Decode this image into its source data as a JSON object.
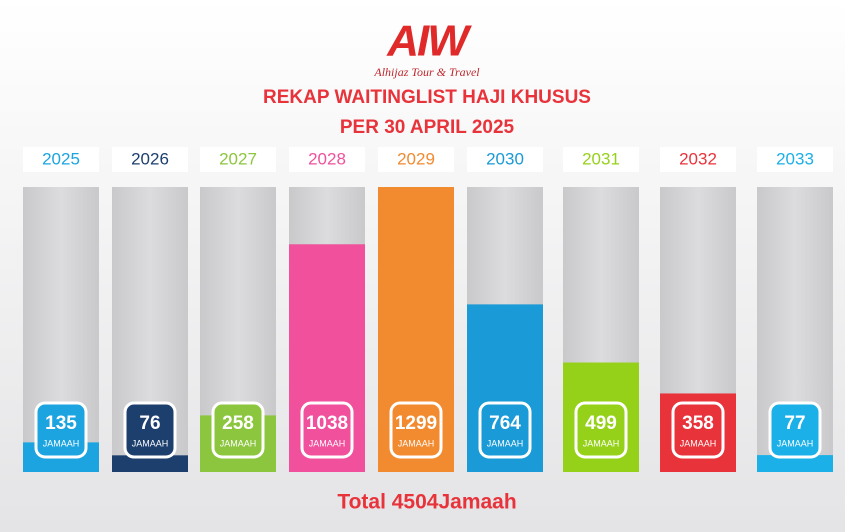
{
  "chart_data": {
    "type": "bar",
    "brand": "AIW",
    "tagline": "Alhijaz Tour & Travel",
    "title": "REKAP WAITINGLIST HAJI KHUSUS",
    "subtitle": "PER 30 APRIL 2025",
    "categories": [
      "2025",
      "2026",
      "2027",
      "2028",
      "2029",
      "2030",
      "2031",
      "2032",
      "2033"
    ],
    "values": [
      135,
      76,
      258,
      1038,
      1299,
      764,
      499,
      358,
      77
    ],
    "colors": [
      "#1ba4e0",
      "#1d3f6e",
      "#8cc63f",
      "#f0509c",
      "#f28a30",
      "#1a9ad6",
      "#96d11a",
      "#e8333b",
      "#1bb0e8"
    ],
    "unit_label": "JAMAAH",
    "total_label": "Total 4504Jamaah"
  }
}
